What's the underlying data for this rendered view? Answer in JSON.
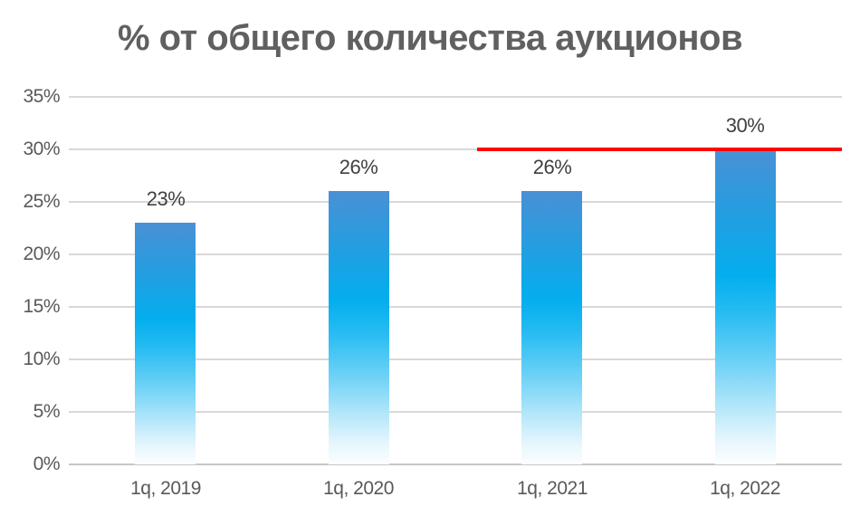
{
  "chart_data": {
    "type": "bar",
    "title": "% от общего количества аукционов",
    "categories": [
      "1q, 2019",
      "1q, 2020",
      "1q, 2021",
      "1q, 2022"
    ],
    "values": [
      23,
      26,
      26,
      30
    ],
    "data_labels": [
      "23%",
      "26%",
      "26%",
      "30%"
    ],
    "xlabel": "",
    "ylabel": "",
    "ylim": [
      0,
      35
    ],
    "y_tick_step": 5,
    "y_tick_labels": [
      "0%",
      "5%",
      "10%",
      "15%",
      "20%",
      "25%",
      "30%",
      "35%"
    ],
    "grid": true,
    "legend": "none",
    "reference_line": {
      "value": 30,
      "label": "",
      "color": "#fe0000",
      "starts_at_category_index": 2
    },
    "colors": {
      "bar_gradient_top": "#4a90d4",
      "bar_gradient_mid": "#04aeee",
      "bar_gradient_bottom": "#fdfeff",
      "gridline": "#d9d9d9",
      "axis_line": "#c4c8cc",
      "title_text": "#606060",
      "tick_text": "#595959",
      "data_label_text": "#404040",
      "reference_line": "#fe0000",
      "background": "#ffffff"
    }
  }
}
